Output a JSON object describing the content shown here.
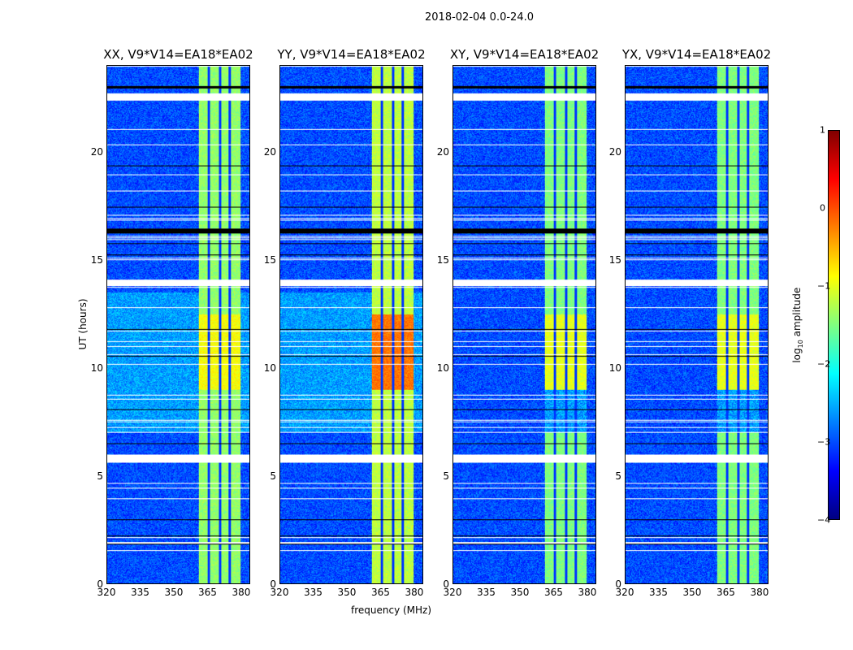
{
  "suptitle": "2018-02-04 0.0-24.0",
  "chart_data": {
    "type": "heatmap",
    "title": "2018-02-04 0.0-24.0",
    "xlabel": "frequency (MHz)",
    "ylabel": "UT (hours)",
    "xlim": [
      320,
      384
    ],
    "ylim": [
      0,
      24
    ],
    "xticks": [
      "320",
      "335",
      "350",
      "365",
      "380"
    ],
    "yticks": [
      "0",
      "5",
      "10",
      "15",
      "20"
    ],
    "panels": [
      {
        "title": "XX, V9*V14=EA18*EA02",
        "band_level": -1.4,
        "peak_level": -0.9
      },
      {
        "title": "YY, V9*V14=EA18*EA02",
        "band_level": -1.2,
        "peak_level": -0.2
      },
      {
        "title": "XY, V9*V14=EA18*EA02",
        "band_level": -1.5,
        "peak_level": -1.0
      },
      {
        "title": "YX, V9*V14=EA18*EA02",
        "band_level": -1.5,
        "peak_level": -1.0
      }
    ],
    "bright_band_mhz": [
      361,
      380
    ],
    "subband_gaps_mhz": [
      365.5,
      370.5,
      375
    ],
    "background_level": -3.0,
    "flagged_hours": [
      [
        22.4,
        22.7
      ],
      [
        13.8,
        14.05
      ],
      [
        5.6,
        5.9
      ]
    ],
    "colorbar": {
      "label_main": "log",
      "label_sub": "10",
      "label_tail": " amplitude",
      "range": [
        -4,
        1
      ],
      "ticks": [
        "1",
        "0",
        "−1",
        "−2",
        "−3",
        "−4"
      ],
      "colormap": "jet"
    }
  }
}
